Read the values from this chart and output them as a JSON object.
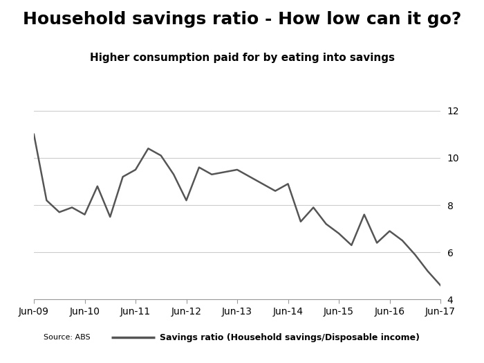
{
  "title": "Household savings ratio - How low can it go?",
  "subtitle": "Higher consumption paid for by eating into savings",
  "source": "Source: ABS",
  "legend_label": "Savings ratio (Household savings/Disposable income)",
  "x_labels": [
    "Jun-09",
    "Jun-10",
    "Jun-11",
    "Jun-12",
    "Jun-13",
    "Jun-14",
    "Jun-15",
    "Jun-16",
    "Jun-17"
  ],
  "ylim": [
    4,
    12
  ],
  "yticks": [
    4,
    6,
    8,
    10,
    12
  ],
  "line_color": "#555555",
  "line_width": 1.8,
  "background_color": "#ffffff",
  "x_values": [
    0,
    1,
    2,
    3,
    4,
    5,
    6,
    7,
    8,
    9,
    10,
    11,
    12,
    13,
    14,
    15,
    16,
    17,
    18,
    19,
    20,
    21,
    22,
    23,
    24,
    25,
    26,
    27,
    28,
    29,
    30,
    31,
    32
  ],
  "y_values": [
    11.0,
    8.2,
    7.7,
    7.9,
    7.6,
    8.8,
    7.5,
    9.2,
    9.5,
    10.4,
    10.1,
    9.3,
    8.2,
    9.6,
    9.3,
    9.4,
    9.5,
    9.2,
    8.9,
    8.6,
    8.9,
    7.3,
    7.9,
    7.2,
    6.8,
    6.3,
    7.6,
    6.4,
    6.9,
    6.5,
    5.9,
    5.2,
    4.6
  ],
  "x_tick_positions": [
    0,
    4,
    8,
    12,
    16,
    20,
    24,
    28,
    32
  ],
  "title_fontsize": 18,
  "subtitle_fontsize": 11,
  "axis_fontsize": 10,
  "grid_color": "#cccccc"
}
